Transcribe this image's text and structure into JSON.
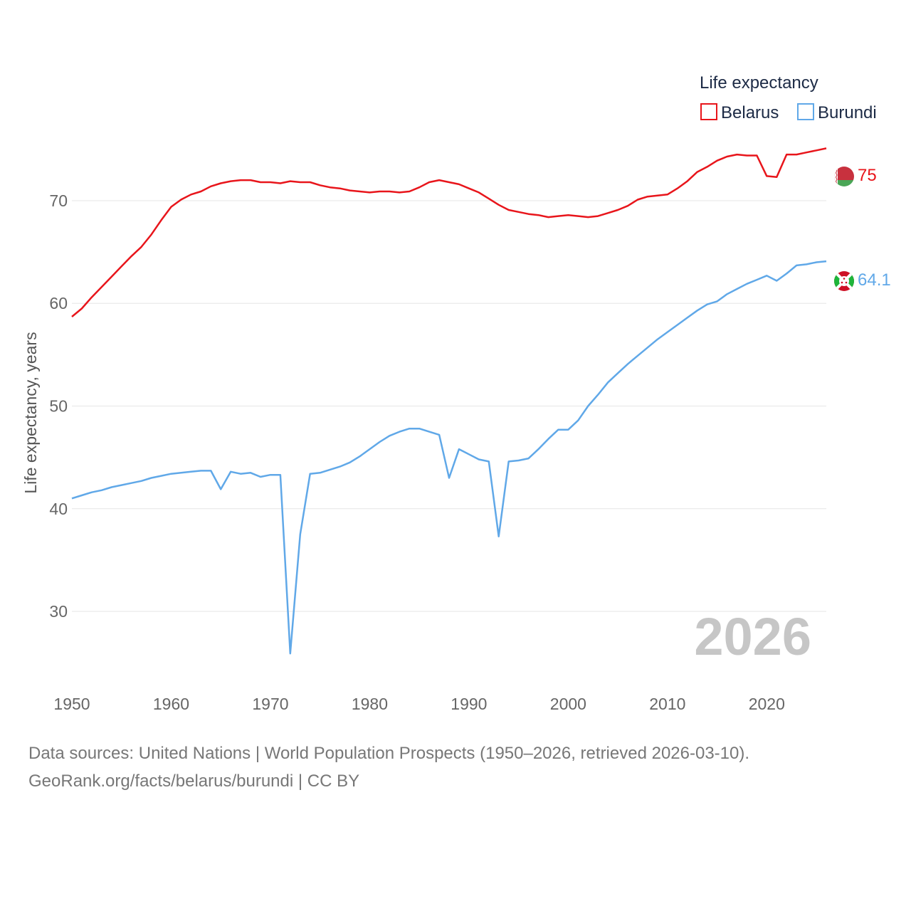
{
  "chart_data": {
    "type": "line",
    "ylabel": "Life expectancy, years",
    "xlabel": "",
    "xlim": [
      1950,
      2026
    ],
    "ylim": [
      23,
      77
    ],
    "x_ticks": [
      1950,
      1960,
      1970,
      1980,
      1990,
      2000,
      2010,
      2020
    ],
    "y_ticks": [
      30,
      40,
      50,
      60,
      70
    ],
    "legend_title": "Life expectancy",
    "legend_position": "top-right",
    "current_year_label": "2026",
    "x": [
      1950,
      1951,
      1952,
      1953,
      1954,
      1955,
      1956,
      1957,
      1958,
      1959,
      1960,
      1961,
      1962,
      1963,
      1964,
      1965,
      1966,
      1967,
      1968,
      1969,
      1970,
      1971,
      1972,
      1973,
      1974,
      1975,
      1976,
      1977,
      1978,
      1979,
      1980,
      1981,
      1982,
      1983,
      1984,
      1985,
      1986,
      1987,
      1988,
      1989,
      1990,
      1991,
      1992,
      1993,
      1994,
      1995,
      1996,
      1997,
      1998,
      1999,
      2000,
      2001,
      2002,
      2003,
      2004,
      2005,
      2006,
      2007,
      2008,
      2009,
      2010,
      2011,
      2012,
      2013,
      2014,
      2015,
      2016,
      2017,
      2018,
      2019,
      2020,
      2021,
      2022,
      2023,
      2024,
      2025,
      2026
    ],
    "series": [
      {
        "name": "Belarus",
        "color": "#e8151b",
        "end_label": "75",
        "flag": "belarus-flag",
        "values": [
          58.7,
          59.5,
          60.6,
          61.6,
          62.6,
          63.6,
          64.6,
          65.5,
          66.7,
          68.1,
          69.4,
          70.1,
          70.6,
          70.9,
          71.4,
          71.7,
          71.9,
          72.0,
          72.0,
          71.8,
          71.8,
          71.7,
          71.9,
          71.8,
          71.8,
          71.5,
          71.3,
          71.2,
          71.0,
          70.9,
          70.8,
          70.9,
          70.9,
          70.8,
          70.9,
          71.3,
          71.8,
          72.0,
          71.8,
          71.6,
          71.2,
          70.8,
          70.2,
          69.6,
          69.1,
          68.9,
          68.7,
          68.6,
          68.4,
          68.5,
          68.6,
          68.5,
          68.4,
          68.5,
          68.8,
          69.1,
          69.5,
          70.1,
          70.4,
          70.5,
          70.6,
          71.2,
          71.9,
          72.8,
          73.3,
          73.9,
          74.3,
          74.5,
          74.4,
          74.4,
          72.4,
          72.3,
          74.5,
          74.5,
          74.7,
          74.9,
          75.1
        ]
      },
      {
        "name": "Burundi",
        "color": "#60a8e8",
        "end_label": "64.1",
        "flag": "burundi-flag",
        "values": [
          41.0,
          41.3,
          41.6,
          41.8,
          42.1,
          42.3,
          42.5,
          42.7,
          43.0,
          43.2,
          43.4,
          43.5,
          43.6,
          43.7,
          43.7,
          41.9,
          43.6,
          43.4,
          43.5,
          43.1,
          43.3,
          43.3,
          25.9,
          37.5,
          43.4,
          43.5,
          43.8,
          44.1,
          44.5,
          45.1,
          45.8,
          46.5,
          47.1,
          47.5,
          47.8,
          47.8,
          47.5,
          47.2,
          43.0,
          45.8,
          45.3,
          44.8,
          44.6,
          37.3,
          44.6,
          44.7,
          44.9,
          45.8,
          46.8,
          47.7,
          47.7,
          48.6,
          50.0,
          51.1,
          52.3,
          53.2,
          54.1,
          54.9,
          55.7,
          56.5,
          57.2,
          57.9,
          58.6,
          59.3,
          59.9,
          60.2,
          60.9,
          61.4,
          61.9,
          62.3,
          62.7,
          62.2,
          62.9,
          63.7,
          63.8,
          64.0,
          64.1
        ]
      }
    ]
  },
  "footer": {
    "line1": "Data sources: United Nations | World Population Prospects (1950–2026, retrieved 2026-03-10).",
    "line2": "GeoRank.org/facts/belarus/burundi | CC BY"
  }
}
